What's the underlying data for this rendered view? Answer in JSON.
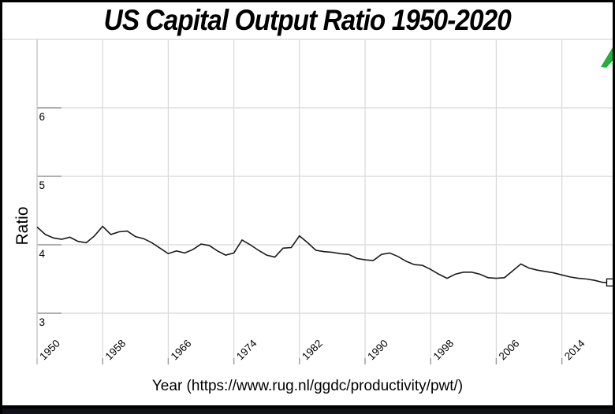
{
  "chart_data": {
    "type": "line",
    "title": "US Capital Output Ratio 1950-2020",
    "xlabel": "Year (https://www.rug.nl/ggdc/productivity/pwt/)",
    "ylabel": "Ratio",
    "x_ticks": [
      1950,
      1958,
      1966,
      1974,
      1982,
      1990,
      1998,
      2006,
      2014
    ],
    "y_ticks": [
      3,
      4,
      5,
      6
    ],
    "xlim": [
      1950,
      2020
    ],
    "ylim": [
      2.25,
      7.0
    ],
    "grid": true,
    "legend": "none",
    "line_color": "#1a1a1a",
    "grid_color": "#d8d8d8",
    "tick_color": "#9a9a9a",
    "axis_color": "#c6c6c6",
    "last_point_marker": "open-square",
    "series": [
      {
        "name": "US Capital Output Ratio",
        "x": [
          1950,
          1951,
          1952,
          1953,
          1954,
          1955,
          1956,
          1957,
          1958,
          1959,
          1960,
          1961,
          1962,
          1963,
          1964,
          1965,
          1966,
          1967,
          1968,
          1969,
          1970,
          1971,
          1972,
          1973,
          1974,
          1975,
          1976,
          1977,
          1978,
          1979,
          1980,
          1981,
          1982,
          1983,
          1984,
          1985,
          1986,
          1987,
          1988,
          1989,
          1990,
          1991,
          1992,
          1993,
          1994,
          1995,
          1996,
          1997,
          1998,
          1999,
          2000,
          2001,
          2002,
          2003,
          2004,
          2005,
          2006,
          2007,
          2008,
          2009,
          2010,
          2011,
          2012,
          2013,
          2014,
          2015,
          2016,
          2017,
          2018,
          2019,
          2020
        ],
        "values": [
          4.26,
          4.15,
          4.1,
          4.08,
          4.11,
          4.05,
          4.03,
          4.13,
          4.27,
          4.15,
          4.19,
          4.2,
          4.12,
          4.09,
          4.03,
          3.95,
          3.87,
          3.91,
          3.88,
          3.93,
          4.01,
          3.99,
          3.91,
          3.85,
          3.88,
          4.07,
          4.0,
          3.92,
          3.85,
          3.82,
          3.95,
          3.96,
          4.13,
          4.03,
          3.92,
          3.9,
          3.89,
          3.87,
          3.86,
          3.8,
          3.78,
          3.77,
          3.86,
          3.88,
          3.83,
          3.76,
          3.71,
          3.7,
          3.64,
          3.57,
          3.51,
          3.57,
          3.6,
          3.6,
          3.57,
          3.52,
          3.51,
          3.52,
          3.62,
          3.72,
          3.66,
          3.63,
          3.61,
          3.59,
          3.56,
          3.53,
          3.51,
          3.5,
          3.48,
          3.45,
          3.45
        ]
      }
    ]
  },
  "decorations": {
    "green_arrow_color": "#1db23a",
    "bottom_strip_color": "#10101a",
    "frame_color": "#000000"
  }
}
